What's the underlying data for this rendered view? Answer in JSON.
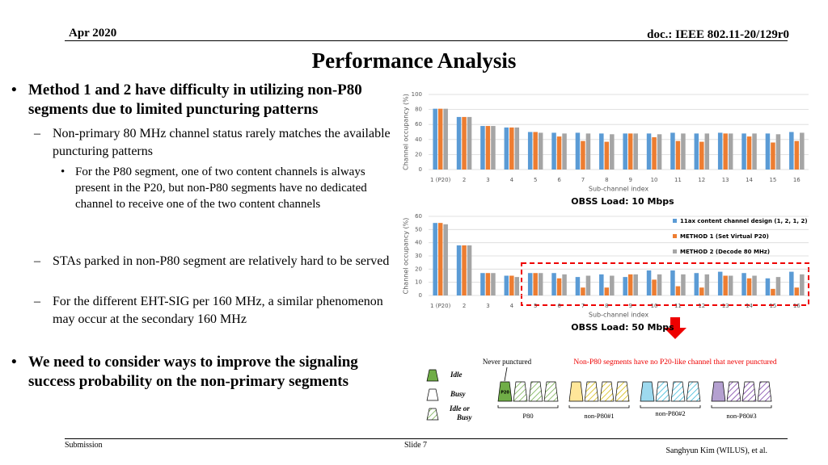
{
  "header": {
    "date": "Apr 2020",
    "doc": "doc.: IEEE 802.11-20/129r0"
  },
  "title": "Performance Analysis",
  "bullets": [
    {
      "level": 1,
      "text": "Method 1 and 2 have difficulty in utilizing non-P80 segments due to limited puncturing patterns"
    },
    {
      "level": 2,
      "text": "Non-primary 80 MHz channel status rarely matches the available puncturing patterns"
    },
    {
      "level": 3,
      "text": "For the P80 segment, one of two content channels is always present in the P20, but non-P80 segments have no dedicated channel to receive one of the two content channels"
    },
    {
      "level": 2,
      "text": "STAs parked in non-P80 segment are relatively hard to be served"
    },
    {
      "level": 2,
      "text": "For the different EHT-SIG per 160 MHz, a similar phenomenon may occur at the secondary 160 MHz"
    },
    {
      "level": 1,
      "text": "We need to consider ways to improve the signaling success probability on the non-primary segments"
    }
  ],
  "chart_data": [
    {
      "type": "bar",
      "caption": "OBSS Load: 10 Mbps",
      "xlabel": "Sub-channel index",
      "ylabel": "Channel occupancy (%)",
      "categories": [
        "1 (P20)",
        "2",
        "3",
        "4",
        "5",
        "6",
        "7",
        "8",
        "9",
        "10",
        "11",
        "12",
        "13",
        "14",
        "15",
        "16"
      ],
      "series": [
        {
          "color": "#5b9bd5",
          "values": [
            81,
            70,
            58,
            56,
            50,
            49,
            49,
            48,
            48,
            48,
            49,
            48,
            49,
            48,
            48,
            50
          ]
        },
        {
          "color": "#ed7d31",
          "values": [
            81,
            70,
            58,
            56,
            50,
            44,
            38,
            37,
            48,
            43,
            38,
            37,
            48,
            44,
            36,
            38
          ]
        },
        {
          "color": "#a5a5a5",
          "values": [
            81,
            70,
            58,
            56,
            49,
            48,
            48,
            47,
            48,
            47,
            48,
            48,
            48,
            48,
            47,
            49
          ]
        }
      ],
      "ylim": [
        0,
        100
      ],
      "yticks": [
        0,
        20,
        40,
        60,
        80,
        100
      ],
      "grid": true
    },
    {
      "type": "bar",
      "caption": "OBSS Load: 50 Mbps",
      "xlabel": "Sub-channel index",
      "ylabel": "Channel occupancy (%)",
      "categories": [
        "1 (P20)",
        "2",
        "3",
        "4",
        "5",
        "6",
        "7",
        "8",
        "9",
        "10",
        "11",
        "12",
        "13",
        "14",
        "15",
        "16"
      ],
      "series": [
        {
          "name": "11ax content channel design (1, 2, 1, 2)",
          "color": "#5b9bd5",
          "values": [
            55,
            38,
            17,
            15,
            17,
            17,
            14,
            16,
            14,
            19,
            19,
            17,
            18,
            17,
            13,
            18
          ]
        },
        {
          "name": "METHOD 1 (Set Virtual P20)",
          "color": "#ed7d31",
          "values": [
            55,
            38,
            17,
            15,
            17,
            13,
            6,
            6,
            16,
            12,
            7,
            6,
            15,
            13,
            5,
            6
          ]
        },
        {
          "name": "METHOD 2 (Decode 80 MHz)",
          "color": "#a5a5a5",
          "values": [
            54,
            38,
            17,
            14,
            17,
            16,
            15,
            15,
            16,
            16,
            16,
            16,
            15,
            15,
            14,
            16
          ]
        }
      ],
      "ylim": [
        0,
        60
      ],
      "yticks": [
        0,
        10,
        20,
        30,
        40,
        50,
        60
      ],
      "grid": true,
      "legend": "upper right"
    }
  ],
  "diagram": {
    "never_punctured": "Never punctured",
    "note": "Non-P80 segments have no P20-like channel that never punctured",
    "legend": [
      "Idle",
      "Busy",
      "Idle or Busy"
    ],
    "p20": "P20",
    "segments": [
      "P80",
      "non-P80#1",
      "non-P80#2",
      "non-P80#3"
    ]
  },
  "footer": {
    "left": "Submission",
    "center": "Slide 7",
    "right": "Sanghyun Kim (WILUS), et al."
  }
}
